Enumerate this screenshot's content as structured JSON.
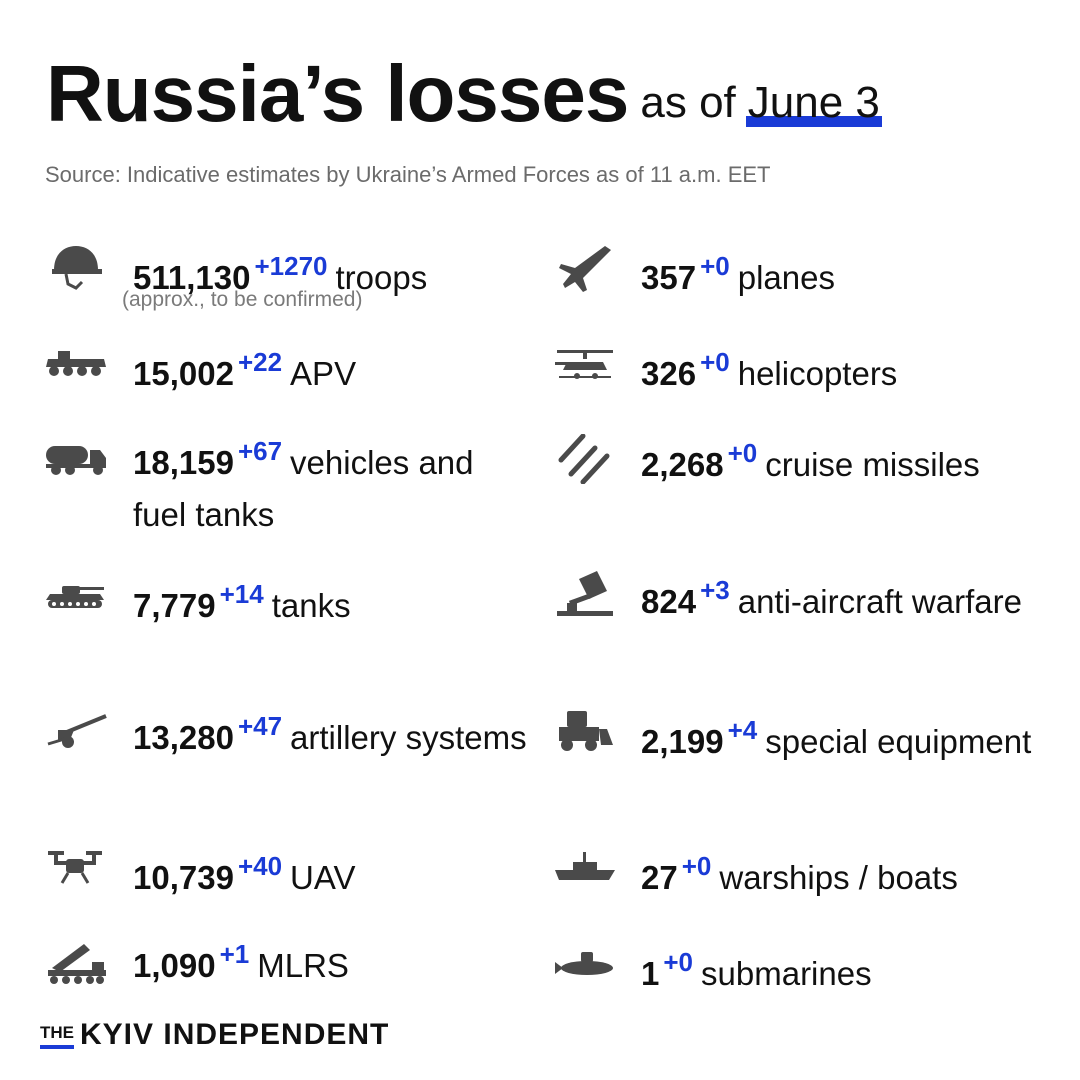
{
  "header": {
    "title": "Russia’s losses",
    "subtitle_prefix": "as of",
    "date": "June 3"
  },
  "source": "Source: Indicative estimates by Ukraine’s Armed Forces as of 11 a.m. EET",
  "colors": {
    "accent": "#1a3bd6",
    "icon": "#4a4a4a",
    "text": "#111111",
    "muted": "#6b6b6b"
  },
  "left_items": [
    {
      "icon": "helmet-icon",
      "value": "511,130",
      "delta": "+1270",
      "label": "troops",
      "note": "(approx., to be confirmed)"
    },
    {
      "icon": "apv-icon",
      "value": "15,002",
      "delta": "+22",
      "label": "APV"
    },
    {
      "icon": "fuel-truck-icon",
      "value": "18,159",
      "delta": "+67",
      "label": "vehicles and fuel tanks"
    },
    {
      "icon": "tank-icon",
      "value": "7,779",
      "delta": "+14",
      "label": "tanks"
    },
    {
      "icon": "artillery-icon",
      "value": "13,280",
      "delta": "+47",
      "label": "artillery systems"
    },
    {
      "icon": "drone-icon",
      "value": "10,739",
      "delta": "+40",
      "label": "UAV"
    },
    {
      "icon": "mlrs-icon",
      "value": "1,090",
      "delta": "+1",
      "label": "MLRS"
    }
  ],
  "right_items": [
    {
      "icon": "plane-icon",
      "value": "357",
      "delta": "+0",
      "label": "planes"
    },
    {
      "icon": "helicopter-icon",
      "value": "326",
      "delta": "+0",
      "label": "helicopters"
    },
    {
      "icon": "missile-icon",
      "value": "2,268",
      "delta": "+0",
      "label": "cruise missiles"
    },
    {
      "icon": "anti-aircraft-icon",
      "value": "824",
      "delta": "+3",
      "label": "anti-aircraft warfare"
    },
    {
      "icon": "special-equipment-icon",
      "value": "2,199",
      "delta": "+4",
      "label": "special equipment"
    },
    {
      "icon": "warship-icon",
      "value": "27",
      "delta": "+0",
      "label": "warships / boats"
    },
    {
      "icon": "submarine-icon",
      "value": "1",
      "delta": "+0",
      "label": "submarines"
    }
  ],
  "brand": {
    "prefix": "THE",
    "name": "KYIV INDEPENDENT"
  }
}
